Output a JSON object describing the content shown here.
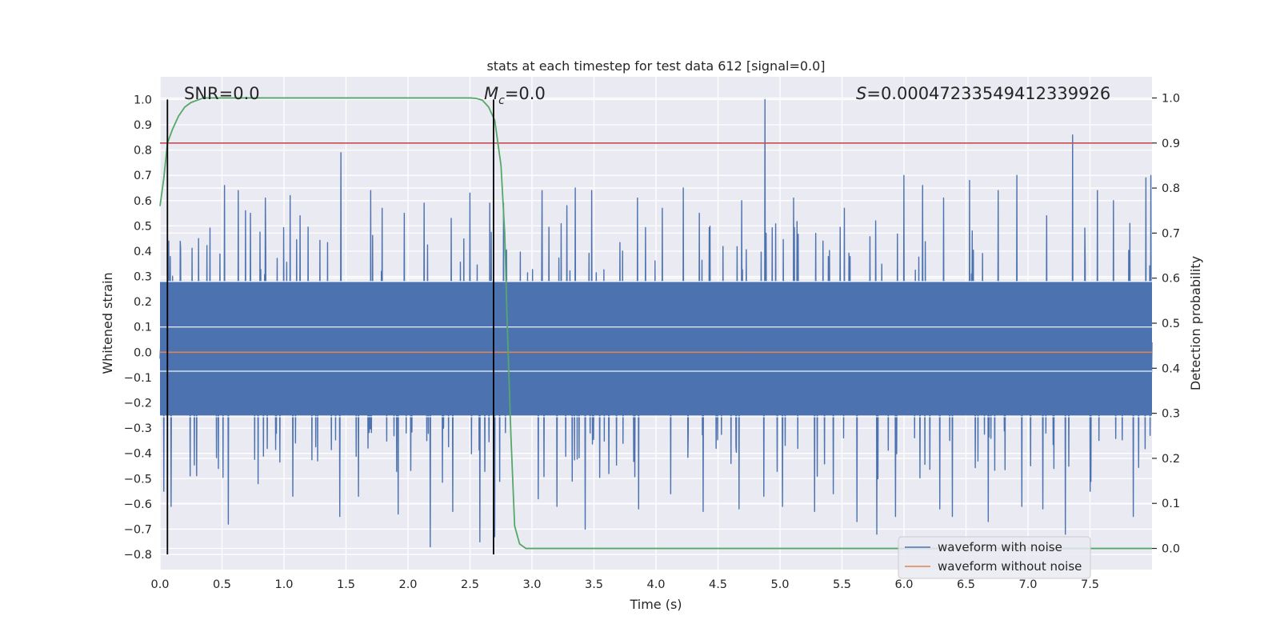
{
  "chart_data": {
    "type": "line",
    "title": "stats at each timestep for test data 612 [signal=0.0]",
    "xlabel": "Time (s)",
    "ylabel_left": "Whitened strain",
    "ylabel_right": "Detection probability",
    "xlim": [
      0.0,
      8.0
    ],
    "ylim_left": [
      -0.86,
      1.09
    ],
    "ylim_right": [
      -0.047,
      1.047
    ],
    "x_ticks": [
      "0.0",
      "0.5",
      "1.0",
      "1.5",
      "2.0",
      "2.5",
      "3.0",
      "3.5",
      "4.0",
      "4.5",
      "5.0",
      "5.5",
      "6.0",
      "6.5",
      "7.0",
      "7.5"
    ],
    "y_ticks_left": [
      "1.0",
      "0.9",
      "0.8",
      "0.7",
      "0.6",
      "0.5",
      "0.4",
      "0.3",
      "0.2",
      "0.1",
      "0.0",
      "−0.1",
      "−0.2",
      "−0.3",
      "−0.4",
      "−0.5",
      "−0.6",
      "−0.7",
      "−0.8"
    ],
    "y_ticks_right": [
      "1.0",
      "0.9",
      "0.8",
      "0.7",
      "0.6",
      "0.5",
      "0.4",
      "0.3",
      "0.2",
      "0.1",
      "0.0"
    ],
    "annotations": {
      "snr": "SNR=0.0",
      "mc_symbol": "M",
      "mc_sub": "c",
      "mc_value": "=0.0",
      "s_symbol": "S",
      "s_value": "=0.00047233549412339926"
    },
    "threshold_probability": 0.9,
    "vertical_markers_x": [
      0.06,
      2.69
    ],
    "series": [
      {
        "name": "waveform with noise",
        "axis": "left",
        "color": "#4c72b0",
        "kind": "noise",
        "typical_range": [
          -0.25,
          0.28
        ],
        "positive_spikes": [
          [
            0.07,
            0.44
          ],
          [
            0.31,
            0.45
          ],
          [
            0.52,
            0.66
          ],
          [
            0.63,
            0.64
          ],
          [
            0.69,
            0.56
          ],
          [
            0.73,
            0.55
          ],
          [
            0.85,
            0.61
          ],
          [
            1.05,
            0.62
          ],
          [
            1.13,
            0.54
          ],
          [
            1.27,
            0.59
          ],
          [
            1.46,
            0.79
          ],
          [
            1.7,
            0.64
          ],
          [
            1.79,
            0.57
          ],
          [
            1.97,
            0.55
          ],
          [
            2.13,
            0.59
          ],
          [
            2.35,
            0.53
          ],
          [
            2.5,
            0.63
          ],
          [
            2.66,
            0.59
          ],
          [
            2.77,
            0.59
          ],
          [
            3.08,
            0.64
          ],
          [
            3.28,
            0.58
          ],
          [
            3.35,
            0.65
          ],
          [
            3.48,
            0.64
          ],
          [
            3.62,
            0.54
          ],
          [
            3.85,
            0.61
          ],
          [
            4.05,
            0.57
          ],
          [
            4.22,
            0.65
          ],
          [
            4.35,
            0.55
          ],
          [
            4.69,
            0.6
          ],
          [
            4.88,
            1.0
          ],
          [
            5.11,
            0.61
          ],
          [
            5.52,
            0.57
          ],
          [
            5.77,
            0.52
          ],
          [
            6.0,
            0.7
          ],
          [
            6.15,
            0.66
          ],
          [
            6.32,
            0.61
          ],
          [
            6.53,
            0.68
          ],
          [
            6.76,
            0.64
          ],
          [
            6.91,
            0.7
          ],
          [
            7.15,
            0.54
          ],
          [
            7.36,
            0.86
          ],
          [
            7.56,
            0.64
          ],
          [
            7.69,
            0.6
          ],
          [
            7.95,
            0.69
          ],
          [
            7.99,
            0.7
          ]
        ],
        "negative_spikes": [
          [
            0.03,
            -0.55
          ],
          [
            0.09,
            -0.61
          ],
          [
            0.47,
            -0.46
          ],
          [
            0.55,
            -0.68
          ],
          [
            0.79,
            -0.52
          ],
          [
            1.07,
            -0.57
          ],
          [
            1.27,
            -0.43
          ],
          [
            1.45,
            -0.65
          ],
          [
            1.6,
            -0.57
          ],
          [
            1.92,
            -0.64
          ],
          [
            2.18,
            -0.77
          ],
          [
            2.36,
            -0.63
          ],
          [
            2.58,
            -0.75
          ],
          [
            2.7,
            -0.73
          ],
          [
            3.05,
            -0.58
          ],
          [
            3.2,
            -0.61
          ],
          [
            3.43,
            -0.7
          ],
          [
            3.62,
            -0.48
          ],
          [
            3.86,
            -0.62
          ],
          [
            4.12,
            -0.56
          ],
          [
            4.38,
            -0.63
          ],
          [
            4.67,
            -0.62
          ],
          [
            4.87,
            -0.57
          ],
          [
            5.02,
            -0.61
          ],
          [
            5.28,
            -0.63
          ],
          [
            5.43,
            -0.56
          ],
          [
            5.62,
            -0.67
          ],
          [
            5.78,
            -0.72
          ],
          [
            5.93,
            -0.65
          ],
          [
            6.29,
            -0.62
          ],
          [
            6.39,
            -0.65
          ],
          [
            6.68,
            -0.67
          ],
          [
            6.95,
            -0.61
          ],
          [
            7.12,
            -0.62
          ],
          [
            7.3,
            -0.72
          ],
          [
            7.5,
            -0.55
          ],
          [
            7.85,
            -0.65
          ]
        ]
      },
      {
        "name": "waveform without noise",
        "axis": "left",
        "color": "#dd8452",
        "x": [
          0.0,
          8.0
        ],
        "y": [
          0.0,
          0.0
        ]
      },
      {
        "name": "detection probability",
        "axis": "right",
        "color": "#55a868",
        "x": [
          0.0,
          0.03,
          0.06,
          0.1,
          0.15,
          0.2,
          0.25,
          0.3,
          0.35,
          0.4,
          0.5,
          1.0,
          1.5,
          2.0,
          2.5,
          2.55,
          2.6,
          2.65,
          2.7,
          2.75,
          2.78,
          2.8,
          2.83,
          2.86,
          2.9,
          2.95,
          3.0,
          8.0
        ],
        "y": [
          0.76,
          0.82,
          0.9,
          0.93,
          0.96,
          0.98,
          0.99,
          0.995,
          1.0,
          1.0,
          1.0,
          1.0,
          1.0,
          1.0,
          1.0,
          0.999,
          0.995,
          0.98,
          0.95,
          0.85,
          0.7,
          0.5,
          0.25,
          0.05,
          0.01,
          0.0,
          0.0,
          0.0
        ]
      }
    ],
    "legend": {
      "placement": "lower-right",
      "entries": [
        "waveform with noise",
        "waveform without noise"
      ]
    }
  },
  "colors": {
    "plot_background": "#eaeaf2",
    "grid": "#ffffff",
    "threshold_line": "#c44e52",
    "marker_line": "#000000"
  }
}
